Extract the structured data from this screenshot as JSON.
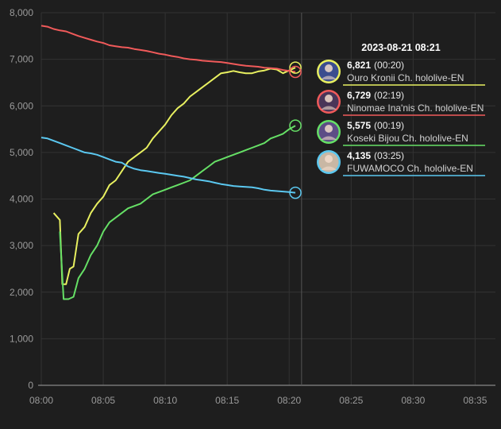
{
  "chart_data": {
    "type": "line",
    "title": "",
    "xlabel": "",
    "ylabel": "",
    "grid": true,
    "ylim": [
      0,
      8000
    ],
    "xlim": [
      "08:00",
      "08:36"
    ],
    "x_ticks": [
      "08:00",
      "08:05",
      "08:10",
      "08:15",
      "08:20",
      "08:25",
      "08:30",
      "08:35"
    ],
    "y_ticks": [
      "0",
      "1,000",
      "2,000",
      "3,000",
      "4,000",
      "5,000",
      "6,000",
      "7,000",
      "8,000"
    ],
    "hover_time": "08:21",
    "tooltip_title": "2023-08-21 08:21",
    "series": [
      {
        "name": "Ouro Kronii Ch. hololive-EN",
        "color": "#e8f060",
        "value_label": "6,821",
        "duration_label": "(00:20)",
        "avatar_bg": "#3b4d8f",
        "points": [
          [
            "08:01",
            3700
          ],
          [
            "08:01.5",
            3550
          ],
          [
            "08:01.7",
            2170
          ],
          [
            "08:02",
            2170
          ],
          [
            "08:02.3",
            2500
          ],
          [
            "08:02.6",
            2550
          ],
          [
            "08:03",
            3250
          ],
          [
            "08:03.5",
            3400
          ],
          [
            "08:04",
            3700
          ],
          [
            "08:04.5",
            3900
          ],
          [
            "08:05",
            4050
          ],
          [
            "08:05.5",
            4300
          ],
          [
            "08:06",
            4400
          ],
          [
            "08:06.5",
            4600
          ],
          [
            "08:07",
            4800
          ],
          [
            "08:07.5",
            4900
          ],
          [
            "08:08",
            5000
          ],
          [
            "08:08.5",
            5100
          ],
          [
            "08:09",
            5300
          ],
          [
            "08:09.5",
            5450
          ],
          [
            "08:10",
            5600
          ],
          [
            "08:10.5",
            5800
          ],
          [
            "08:11",
            5950
          ],
          [
            "08:11.5",
            6050
          ],
          [
            "08:12",
            6200
          ],
          [
            "08:12.5",
            6300
          ],
          [
            "08:13",
            6400
          ],
          [
            "08:13.5",
            6500
          ],
          [
            "08:14",
            6600
          ],
          [
            "08:14.5",
            6700
          ],
          [
            "08:15",
            6720
          ],
          [
            "08:15.5",
            6750
          ],
          [
            "08:16",
            6720
          ],
          [
            "08:16.5",
            6700
          ],
          [
            "08:17",
            6700
          ],
          [
            "08:17.5",
            6740
          ],
          [
            "08:18",
            6760
          ],
          [
            "08:18.5",
            6800
          ],
          [
            "08:19",
            6780
          ],
          [
            "08:19.5",
            6700
          ],
          [
            "08:20",
            6760
          ],
          [
            "08:20.5",
            6821
          ]
        ]
      },
      {
        "name": "Ninomae Ina'nis Ch. hololive-EN",
        "color": "#f05a5a",
        "value_label": "6,729",
        "duration_label": "(02:19)",
        "avatar_bg": "#4a3558",
        "points": [
          [
            "08:00",
            7720
          ],
          [
            "08:00.5",
            7700
          ],
          [
            "08:01",
            7650
          ],
          [
            "08:01.5",
            7620
          ],
          [
            "08:02",
            7600
          ],
          [
            "08:02.5",
            7550
          ],
          [
            "08:03",
            7500
          ],
          [
            "08:03.5",
            7460
          ],
          [
            "08:04",
            7420
          ],
          [
            "08:04.5",
            7380
          ],
          [
            "08:05",
            7350
          ],
          [
            "08:05.5",
            7300
          ],
          [
            "08:06",
            7280
          ],
          [
            "08:06.5",
            7260
          ],
          [
            "08:07",
            7250
          ],
          [
            "08:07.5",
            7220
          ],
          [
            "08:08",
            7200
          ],
          [
            "08:08.5",
            7180
          ],
          [
            "08:09",
            7150
          ],
          [
            "08:09.5",
            7120
          ],
          [
            "08:10",
            7100
          ],
          [
            "08:10.5",
            7070
          ],
          [
            "08:11",
            7050
          ],
          [
            "08:11.5",
            7020
          ],
          [
            "08:12",
            7000
          ],
          [
            "08:12.5",
            6990
          ],
          [
            "08:13",
            6970
          ],
          [
            "08:13.5",
            6960
          ],
          [
            "08:14",
            6950
          ],
          [
            "08:14.5",
            6940
          ],
          [
            "08:15",
            6920
          ],
          [
            "08:15.5",
            6900
          ],
          [
            "08:16",
            6880
          ],
          [
            "08:16.5",
            6860
          ],
          [
            "08:17",
            6850
          ],
          [
            "08:17.5",
            6840
          ],
          [
            "08:18",
            6820
          ],
          [
            "08:18.5",
            6810
          ],
          [
            "08:19",
            6800
          ],
          [
            "08:19.5",
            6770
          ],
          [
            "08:20",
            6750
          ],
          [
            "08:20.5",
            6729
          ]
        ]
      },
      {
        "name": "Koseki Bijou Ch. hololive-EN",
        "color": "#66e066",
        "value_label": "5,575",
        "duration_label": "(00:19)",
        "avatar_bg": "#5d4d86",
        "points": [
          [
            "08:01.5",
            3300
          ],
          [
            "08:01.8",
            1850
          ],
          [
            "08:02.2",
            1850
          ],
          [
            "08:02.6",
            1900
          ],
          [
            "08:03",
            2300
          ],
          [
            "08:03.5",
            2500
          ],
          [
            "08:04",
            2800
          ],
          [
            "08:04.5",
            3000
          ],
          [
            "08:05",
            3300
          ],
          [
            "08:05.5",
            3500
          ],
          [
            "08:06",
            3600
          ],
          [
            "08:06.5",
            3700
          ],
          [
            "08:07",
            3800
          ],
          [
            "08:07.5",
            3850
          ],
          [
            "08:08",
            3900
          ],
          [
            "08:08.5",
            4000
          ],
          [
            "08:09",
            4100
          ],
          [
            "08:09.5",
            4150
          ],
          [
            "08:10",
            4200
          ],
          [
            "08:10.5",
            4250
          ],
          [
            "08:11",
            4300
          ],
          [
            "08:11.5",
            4350
          ],
          [
            "08:12",
            4400
          ],
          [
            "08:12.5",
            4500
          ],
          [
            "08:13",
            4600
          ],
          [
            "08:13.5",
            4700
          ],
          [
            "08:14",
            4800
          ],
          [
            "08:14.5",
            4850
          ],
          [
            "08:15",
            4900
          ],
          [
            "08:15.5",
            4950
          ],
          [
            "08:16",
            5000
          ],
          [
            "08:16.5",
            5050
          ],
          [
            "08:17",
            5100
          ],
          [
            "08:17.5",
            5150
          ],
          [
            "08:18",
            5200
          ],
          [
            "08:18.5",
            5300
          ],
          [
            "08:19",
            5350
          ],
          [
            "08:19.5",
            5400
          ],
          [
            "08:20",
            5500
          ],
          [
            "08:20.5",
            5575
          ]
        ]
      },
      {
        "name": "FUWAMOCO Ch. hololive-EN",
        "color": "#5bc8f0",
        "value_label": "4,135",
        "duration_label": "(03:25)",
        "avatar_bg": "#c9b7a4",
        "points": [
          [
            "08:00",
            5320
          ],
          [
            "08:00.5",
            5300
          ],
          [
            "08:01",
            5250
          ],
          [
            "08:01.5",
            5200
          ],
          [
            "08:02",
            5150
          ],
          [
            "08:02.5",
            5100
          ],
          [
            "08:03",
            5050
          ],
          [
            "08:03.5",
            5000
          ],
          [
            "08:04",
            4980
          ],
          [
            "08:04.5",
            4950
          ],
          [
            "08:05",
            4900
          ],
          [
            "08:05.5",
            4850
          ],
          [
            "08:06",
            4800
          ],
          [
            "08:06.5",
            4780
          ],
          [
            "08:07",
            4700
          ],
          [
            "08:07.5",
            4650
          ],
          [
            "08:08",
            4620
          ],
          [
            "08:08.5",
            4600
          ],
          [
            "08:09",
            4580
          ],
          [
            "08:09.5",
            4560
          ],
          [
            "08:10",
            4540
          ],
          [
            "08:10.5",
            4520
          ],
          [
            "08:11",
            4500
          ],
          [
            "08:11.5",
            4480
          ],
          [
            "08:12",
            4450
          ],
          [
            "08:12.5",
            4420
          ],
          [
            "08:13",
            4400
          ],
          [
            "08:13.5",
            4380
          ],
          [
            "08:14",
            4350
          ],
          [
            "08:14.5",
            4320
          ],
          [
            "08:15",
            4300
          ],
          [
            "08:15.5",
            4280
          ],
          [
            "08:16",
            4270
          ],
          [
            "08:16.5",
            4260
          ],
          [
            "08:17",
            4250
          ],
          [
            "08:17.5",
            4230
          ],
          [
            "08:18",
            4200
          ],
          [
            "08:18.5",
            4180
          ],
          [
            "08:19",
            4170
          ],
          [
            "08:19.5",
            4160
          ],
          [
            "08:20",
            4150
          ],
          [
            "08:20.5",
            4135
          ]
        ]
      }
    ]
  },
  "colors": {
    "background": "#1e1e1e",
    "grid": "#333333",
    "axis": "#a0a0a0",
    "crosshair": "#555555"
  }
}
